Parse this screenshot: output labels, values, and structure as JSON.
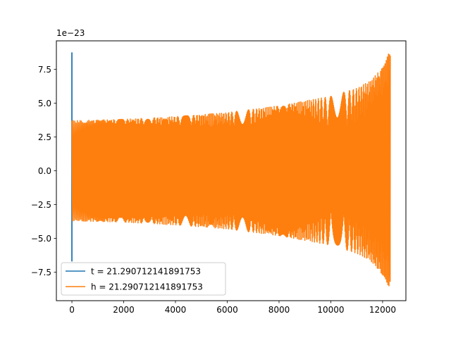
{
  "chart_data": {
    "type": "line",
    "title": "",
    "xlabel": "",
    "ylabel": "",
    "y_offset_label": "1e−23",
    "xlim": [
      -600,
      12900
    ],
    "ylim": [
      -9.6,
      9.6
    ],
    "x_ticks": [
      0,
      2000,
      4000,
      6000,
      8000,
      10000,
      12000
    ],
    "x_tick_labels": [
      "0",
      "2000",
      "4000",
      "6000",
      "8000",
      "10000",
      "12000"
    ],
    "y_ticks": [
      -7.5,
      -5.0,
      -2.5,
      0.0,
      2.5,
      5.0,
      7.5
    ],
    "y_tick_labels": [
      "−7.5",
      "−5.0",
      "−2.5",
      "0.0",
      "2.5",
      "5.0",
      "7.5"
    ],
    "grid": false,
    "legend_position": "lower-left",
    "x_end": 12300,
    "envelope": {
      "x": [
        0,
        2000,
        4000,
        6000,
        8000,
        10000,
        11000,
        11500,
        12000,
        12200,
        12300
      ],
      "upper": [
        3.7,
        3.8,
        4.0,
        4.3,
        4.8,
        5.5,
        6.1,
        6.6,
        7.6,
        8.5,
        9.1
      ],
      "lower": [
        -3.7,
        -3.8,
        -4.0,
        -4.3,
        -4.8,
        -5.5,
        -6.1,
        -6.6,
        -7.7,
        -8.4,
        -8.9
      ]
    },
    "series": [
      {
        "name": "t = 21.290712141891753",
        "color": "#1f77b4",
        "spike": {
          "x": 0,
          "max": 8.75,
          "min": -6.7
        }
      },
      {
        "name": "h = 21.290712141891753",
        "color": "#ff7f0e"
      }
    ]
  }
}
